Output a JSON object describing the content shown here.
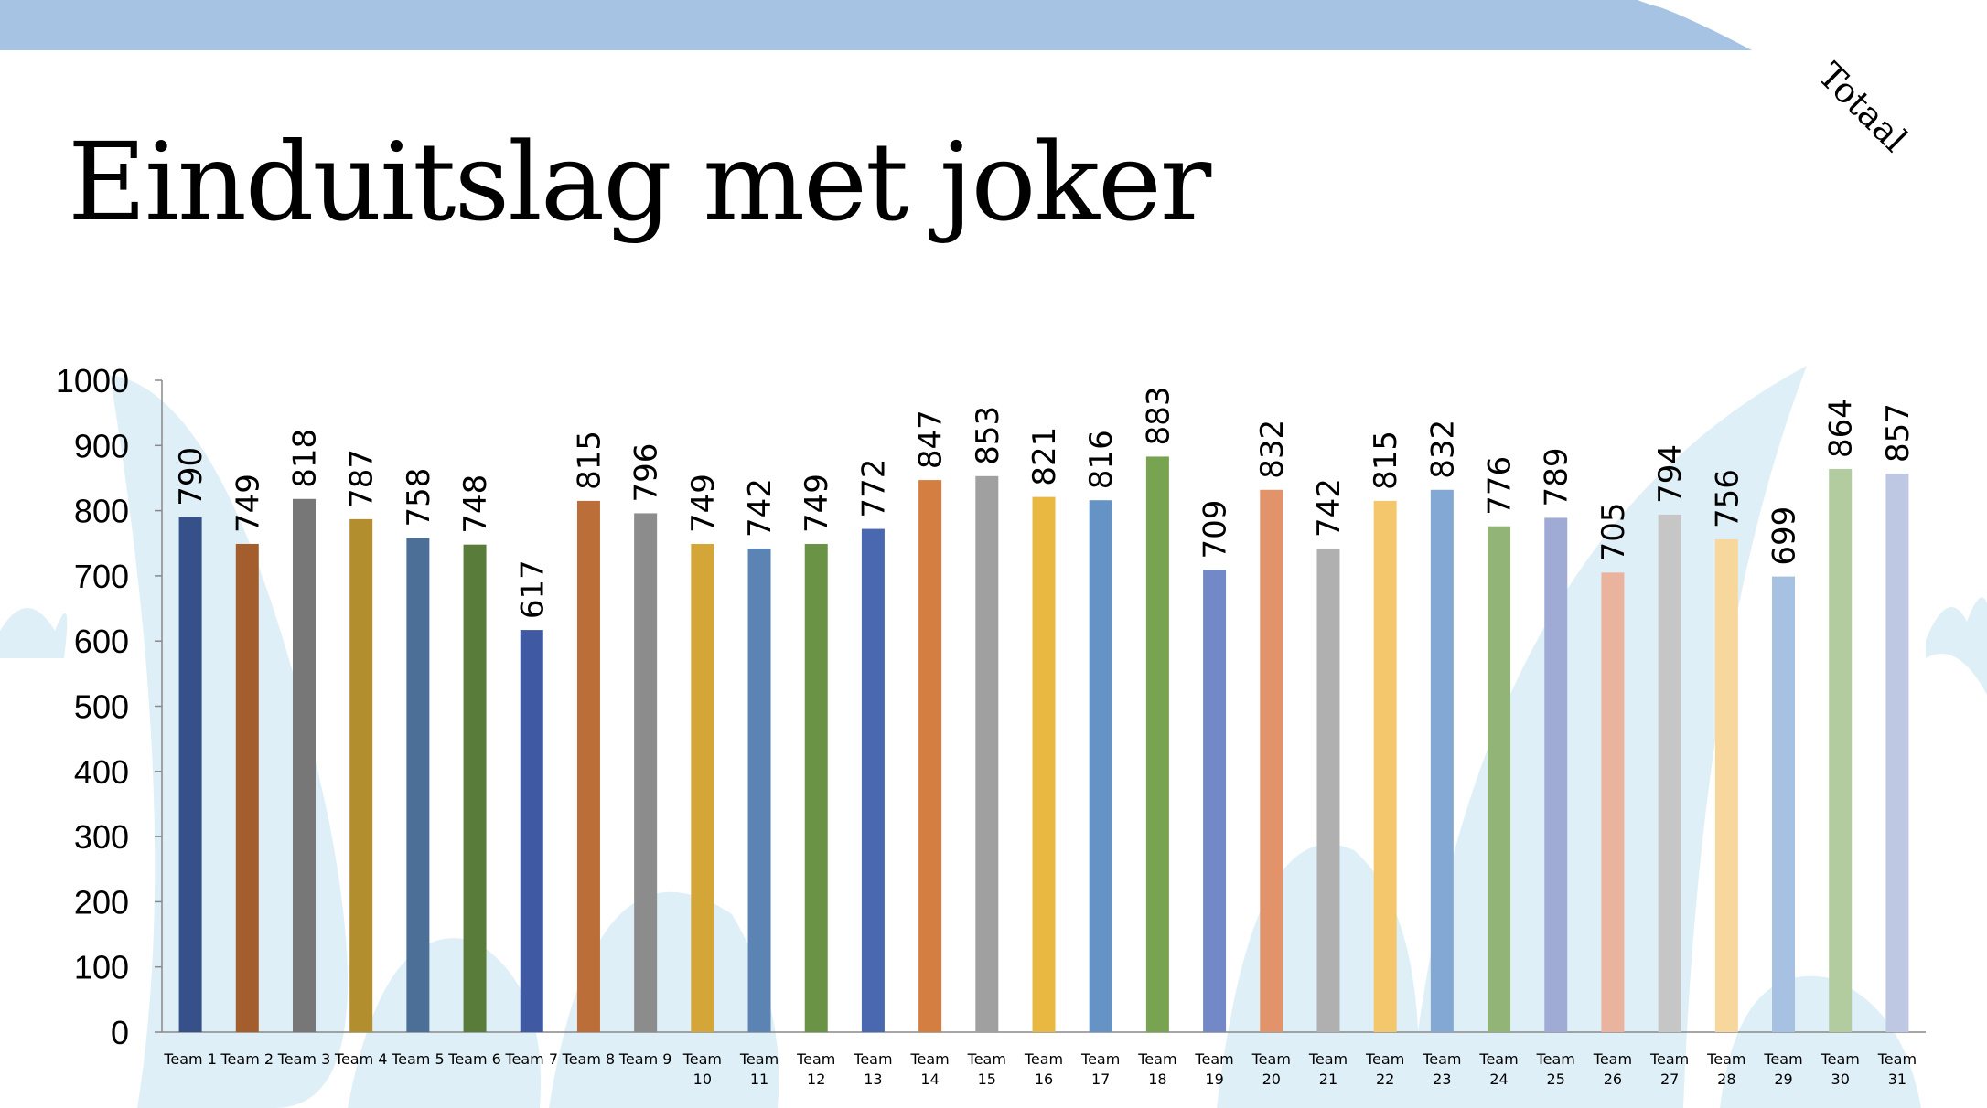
{
  "slide": {
    "title": "Einduitslag met joker",
    "corner_label": "Totaal"
  },
  "colors": {
    "top_band": "#a7c3e4",
    "background_shape": "#dfeff7"
  },
  "chart_data": {
    "type": "bar",
    "title": "Einduitslag met joker",
    "xlabel": "",
    "ylabel": "",
    "ylim": [
      0,
      1000
    ],
    "yticks": [
      0,
      100,
      200,
      300,
      400,
      500,
      600,
      700,
      800,
      900,
      1000
    ],
    "grid": false,
    "legend": "none",
    "categories": [
      "Team 1",
      "Team 2",
      "Team 3",
      "Team 4",
      "Team 5",
      "Team 6",
      "Team 7",
      "Team 8",
      "Team 9",
      "Team 10",
      "Team 11",
      "Team 12",
      "Team 13",
      "Team 14",
      "Team 15",
      "Team 16",
      "Team 17",
      "Team 18",
      "Team 19",
      "Team 20",
      "Team 21",
      "Team 22",
      "Team 23",
      "Team 24",
      "Team 25",
      "Team 26",
      "Team 27",
      "Team 28",
      "Team 29",
      "Team 30",
      "Team 31"
    ],
    "values": [
      790,
      749,
      818,
      787,
      758,
      748,
      617,
      815,
      796,
      749,
      742,
      749,
      772,
      847,
      853,
      821,
      816,
      883,
      709,
      832,
      742,
      815,
      832,
      776,
      789,
      705,
      794,
      756,
      699,
      864,
      857
    ],
    "bar_colors": [
      "#36508a",
      "#a45e2e",
      "#777777",
      "#b38e2f",
      "#4c6f98",
      "#5a7c3a",
      "#3f5aa3",
      "#bc6e38",
      "#8c8c8c",
      "#d4a637",
      "#5b83b3",
      "#6b9345",
      "#4a68b0",
      "#d47e42",
      "#a0a0a0",
      "#e8b840",
      "#6693c6",
      "#78a350",
      "#7388c6",
      "#e2936a",
      "#b0b0b0",
      "#f4c76d",
      "#83a8d4",
      "#92b577",
      "#9fabd4",
      "#e9b39d",
      "#c6c6c6",
      "#f7d79c",
      "#a7c1e2",
      "#b2cb9f",
      "#bfc8e3"
    ]
  }
}
